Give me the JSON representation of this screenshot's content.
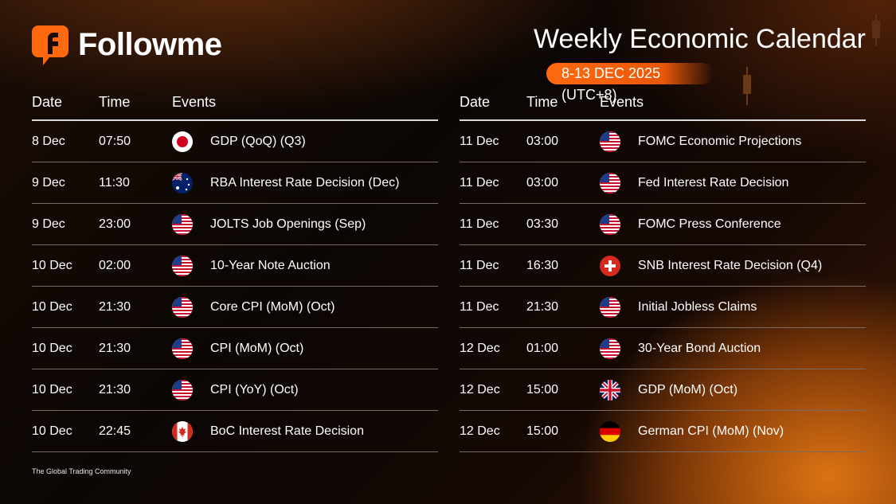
{
  "brand": {
    "name": "Followme",
    "tagline": "The Global Trading Community"
  },
  "title": "Weekly Economic Calendar",
  "date_range": "8-13 DEC 2025  (UTC+8)",
  "headers": {
    "date": "Date",
    "time": "Time",
    "events": "Events"
  },
  "left_rows": [
    {
      "date": "8 Dec",
      "time": "07:50",
      "flag": "japan-flag-icon",
      "event": "GDP (QoQ) (Q3)"
    },
    {
      "date": "9 Dec",
      "time": "11:30",
      "flag": "australia-flag-icon",
      "event": "RBA Interest Rate Decision (Dec)"
    },
    {
      "date": "9 Dec",
      "time": "23:00",
      "flag": "usa-flag-icon",
      "event": "JOLTS Job Openings (Sep)"
    },
    {
      "date": "10 Dec",
      "time": "02:00",
      "flag": "usa-flag-icon",
      "event": "10-Year Note Auction"
    },
    {
      "date": "10 Dec",
      "time": "21:30",
      "flag": "usa-flag-icon",
      "event": "Core CPI (MoM) (Oct)"
    },
    {
      "date": "10 Dec",
      "time": "21:30",
      "flag": "usa-flag-icon",
      "event": "CPI (MoM) (Oct)"
    },
    {
      "date": "10 Dec",
      "time": "21:30",
      "flag": "usa-flag-icon",
      "event": "CPI (YoY) (Oct)"
    },
    {
      "date": "10 Dec",
      "time": "22:45",
      "flag": "canada-flag-icon",
      "event": "BoC Interest Rate Decision"
    }
  ],
  "right_rows": [
    {
      "date": "11 Dec",
      "time": "03:00",
      "flag": "usa-flag-icon",
      "event": "FOMC Economic Projections"
    },
    {
      "date": "11 Dec",
      "time": "03:00",
      "flag": "usa-flag-icon",
      "event": "Fed Interest Rate Decision"
    },
    {
      "date": "11 Dec",
      "time": "03:30",
      "flag": "usa-flag-icon",
      "event": "FOMC Press Conference"
    },
    {
      "date": "11 Dec",
      "time": "16:30",
      "flag": "switzerland-flag-icon",
      "event": "SNB Interest Rate Decision (Q4)"
    },
    {
      "date": "11 Dec",
      "time": "21:30",
      "flag": "usa-flag-icon",
      "event": "Initial Jobless Claims"
    },
    {
      "date": "12 Dec",
      "time": "01:00",
      "flag": "usa-flag-icon",
      "event": "30-Year Bond Auction"
    },
    {
      "date": "12 Dec",
      "time": "15:00",
      "flag": "uk-flag-icon",
      "event": "GDP (MoM) (Oct)"
    },
    {
      "date": "12 Dec",
      "time": "15:00",
      "flag": "germany-flag-icon",
      "event": "German CPI (MoM) (Nov)"
    }
  ],
  "colors": {
    "accent": "#ff6a10",
    "divider": "#7a6a60"
  }
}
